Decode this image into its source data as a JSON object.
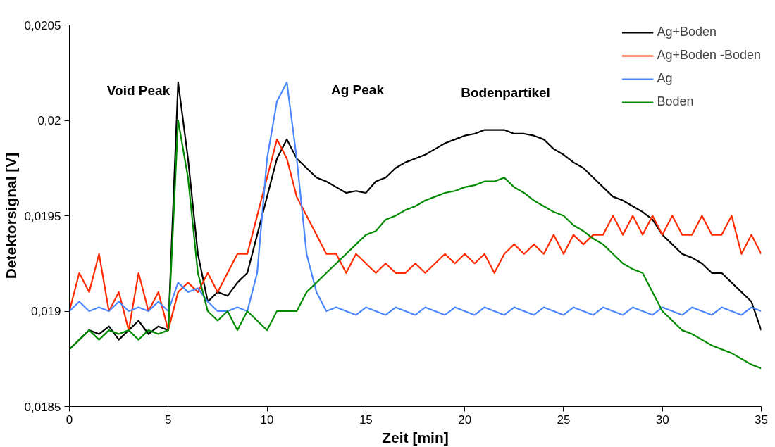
{
  "chart_data": {
    "type": "line",
    "xlabel": "Zeit [min]",
    "ylabel": "Detektorsignal [V]",
    "x": [
      0,
      0.5,
      1,
      1.5,
      2,
      2.5,
      3,
      3.5,
      4,
      4.5,
      5,
      5.5,
      6,
      6.5,
      7,
      7.5,
      8,
      8.5,
      9,
      9.5,
      10,
      10.5,
      11,
      11.5,
      12,
      12.5,
      13,
      13.5,
      14,
      14.5,
      15,
      15.5,
      16,
      16.5,
      17,
      17.5,
      18,
      18.5,
      19,
      19.5,
      20,
      20.5,
      21,
      21.5,
      22,
      22.5,
      23,
      23.5,
      24,
      24.5,
      25,
      25.5,
      26,
      26.5,
      27,
      27.5,
      28,
      28.5,
      29,
      29.5,
      30,
      30.5,
      31,
      31.5,
      32,
      32.5,
      33,
      33.5,
      34,
      34.5,
      35
    ],
    "series": [
      {
        "name": "Ag+Boden",
        "color": "#000000",
        "values": [
          0.0188,
          0.01885,
          0.0189,
          0.01888,
          0.01892,
          0.01885,
          0.0189,
          0.01895,
          0.01888,
          0.01892,
          0.0189,
          0.0202,
          0.0198,
          0.0193,
          0.01905,
          0.0191,
          0.01908,
          0.01915,
          0.0192,
          0.0194,
          0.0196,
          0.0198,
          0.0199,
          0.0198,
          0.01975,
          0.0197,
          0.01968,
          0.01965,
          0.01962,
          0.01963,
          0.01962,
          0.01968,
          0.0197,
          0.01975,
          0.01978,
          0.0198,
          0.01982,
          0.01985,
          0.01988,
          0.0199,
          0.01992,
          0.01993,
          0.01995,
          0.01995,
          0.01995,
          0.01993,
          0.01993,
          0.01992,
          0.0199,
          0.01985,
          0.01982,
          0.01978,
          0.01975,
          0.0197,
          0.01965,
          0.0196,
          0.01958,
          0.01955,
          0.01952,
          0.01948,
          0.0194,
          0.01935,
          0.0193,
          0.01928,
          0.01925,
          0.0192,
          0.0192,
          0.01915,
          0.0191,
          0.01905,
          0.0189
        ]
      },
      {
        "name": "Ag+Boden -Boden",
        "color": "#ff2a00",
        "values": [
          0.019,
          0.0192,
          0.0191,
          0.0193,
          0.019,
          0.0191,
          0.0189,
          0.0192,
          0.019,
          0.0191,
          0.0189,
          0.0191,
          0.01915,
          0.0191,
          0.0192,
          0.0191,
          0.0192,
          0.0193,
          0.0193,
          0.0195,
          0.0197,
          0.0199,
          0.0198,
          0.0196,
          0.0195,
          0.0194,
          0.0193,
          0.0193,
          0.0192,
          0.0193,
          0.01925,
          0.0192,
          0.01925,
          0.0192,
          0.0192,
          0.01925,
          0.0192,
          0.01925,
          0.0193,
          0.01925,
          0.0193,
          0.01925,
          0.0193,
          0.0192,
          0.0193,
          0.01935,
          0.0193,
          0.01935,
          0.0193,
          0.0194,
          0.0193,
          0.0194,
          0.01935,
          0.0194,
          0.0194,
          0.0195,
          0.0194,
          0.0195,
          0.0194,
          0.0195,
          0.0194,
          0.0195,
          0.0194,
          0.0194,
          0.0195,
          0.0194,
          0.0194,
          0.0195,
          0.0193,
          0.0194,
          0.0193
        ]
      },
      {
        "name": "Ag",
        "color": "#4a86ff",
        "values": [
          0.019,
          0.01905,
          0.019,
          0.01902,
          0.019,
          0.01905,
          0.019,
          0.01902,
          0.019,
          0.01905,
          0.019,
          0.01915,
          0.0191,
          0.01912,
          0.01905,
          0.019,
          0.019,
          0.01902,
          0.019,
          0.0192,
          0.0198,
          0.0201,
          0.0202,
          0.0198,
          0.0193,
          0.0191,
          0.019,
          0.01902,
          0.019,
          0.01898,
          0.01902,
          0.019,
          0.01898,
          0.01902,
          0.019,
          0.01898,
          0.01902,
          0.019,
          0.01898,
          0.01902,
          0.019,
          0.01898,
          0.01902,
          0.019,
          0.01898,
          0.01902,
          0.019,
          0.01898,
          0.01902,
          0.019,
          0.01898,
          0.01902,
          0.019,
          0.01898,
          0.01902,
          0.019,
          0.01898,
          0.01902,
          0.019,
          0.01898,
          0.01902,
          0.019,
          0.01898,
          0.01902,
          0.019,
          0.01898,
          0.01902,
          0.019,
          0.01898,
          0.01902,
          0.019
        ]
      },
      {
        "name": "Boden",
        "color": "#008a00",
        "values": [
          0.0188,
          0.01885,
          0.0189,
          0.01885,
          0.0189,
          0.01888,
          0.0189,
          0.01885,
          0.0189,
          0.01888,
          0.0189,
          0.02,
          0.0197,
          0.0192,
          0.019,
          0.01895,
          0.019,
          0.0189,
          0.019,
          0.01895,
          0.0189,
          0.019,
          0.019,
          0.019,
          0.0191,
          0.01915,
          0.0192,
          0.01925,
          0.0193,
          0.01935,
          0.0194,
          0.01942,
          0.01948,
          0.0195,
          0.01953,
          0.01955,
          0.01958,
          0.0196,
          0.01962,
          0.01963,
          0.01965,
          0.01966,
          0.01968,
          0.01968,
          0.0197,
          0.01965,
          0.01962,
          0.01958,
          0.01955,
          0.01952,
          0.0195,
          0.01945,
          0.01942,
          0.01938,
          0.01935,
          0.0193,
          0.01925,
          0.01922,
          0.0192,
          0.0191,
          0.019,
          0.01895,
          0.0189,
          0.01888,
          0.01885,
          0.01882,
          0.0188,
          0.01878,
          0.01875,
          0.01872,
          0.0187
        ]
      }
    ],
    "xlim": [
      0,
      35
    ],
    "xticks": [
      0,
      5,
      10,
      15,
      20,
      25,
      30,
      35
    ],
    "ylim": [
      0.0185,
      0.0205
    ],
    "yticks": [
      {
        "value": 0.0185,
        "label": "0,0185"
      },
      {
        "value": 0.019,
        "label": "0,019"
      },
      {
        "value": 0.0195,
        "label": "0,0195"
      },
      {
        "value": 0.02,
        "label": "0,02"
      },
      {
        "value": 0.0205,
        "label": "0,0205"
      }
    ],
    "annotations": [
      "Void Peak",
      "Ag Peak",
      "Bodenpartikel"
    ],
    "grid": false,
    "legend": "top right",
    "marker": "none",
    "line_style": "solid"
  }
}
